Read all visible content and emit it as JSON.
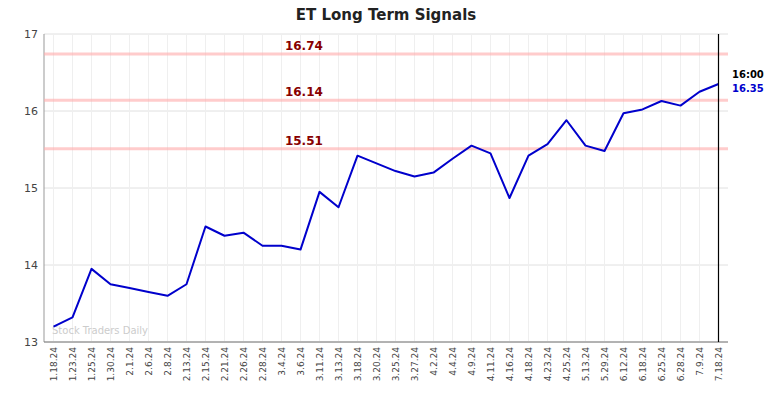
{
  "chart_data": {
    "type": "line",
    "title": "ET Long Term Signals",
    "categories": [
      "1.18.24",
      "1.23.24",
      "1.25.24",
      "1.30.24",
      "2.1.24",
      "2.6.24",
      "2.8.24",
      "2.13.24",
      "2.15.24",
      "2.21.24",
      "2.26.24",
      "2.28.24",
      "3.4.24",
      "3.6.24",
      "3.11.24",
      "3.13.24",
      "3.18.24",
      "3.20.24",
      "3.25.24",
      "3.27.24",
      "4.2.24",
      "4.4.24",
      "4.9.24",
      "4.11.24",
      "4.16.24",
      "4.18.24",
      "4.23.24",
      "4.25.24",
      "5.13.24",
      "5.29.24",
      "6.12.24",
      "6.18.24",
      "6.25.24",
      "6.28.24",
      "7.9.24",
      "7.18.24"
    ],
    "values": [
      13.2,
      13.32,
      13.95,
      13.75,
      13.7,
      13.65,
      13.6,
      13.75,
      14.5,
      14.38,
      14.42,
      14.25,
      14.25,
      14.2,
      14.95,
      14.75,
      15.42,
      15.32,
      15.22,
      15.15,
      15.2,
      15.38,
      15.55,
      15.45,
      14.87,
      15.42,
      15.57,
      15.88,
      15.55,
      15.48,
      15.97,
      16.02,
      16.13,
      16.07,
      16.25,
      16.35
    ],
    "color": "#0000cc",
    "ylim": [
      13,
      17
    ],
    "yticks": [
      13,
      14,
      15,
      16,
      17
    ],
    "grid": true,
    "hlines": [
      {
        "value": 16.74,
        "label": "16.74"
      },
      {
        "value": 16.14,
        "label": "16.14"
      },
      {
        "value": 15.51,
        "label": "15.51"
      }
    ],
    "annotations": [
      {
        "text": "16:00",
        "y": 16.35
      },
      {
        "text": "16.35",
        "y": 16.35
      },
      {
        "text": "Stock Traders Daily"
      }
    ]
  }
}
